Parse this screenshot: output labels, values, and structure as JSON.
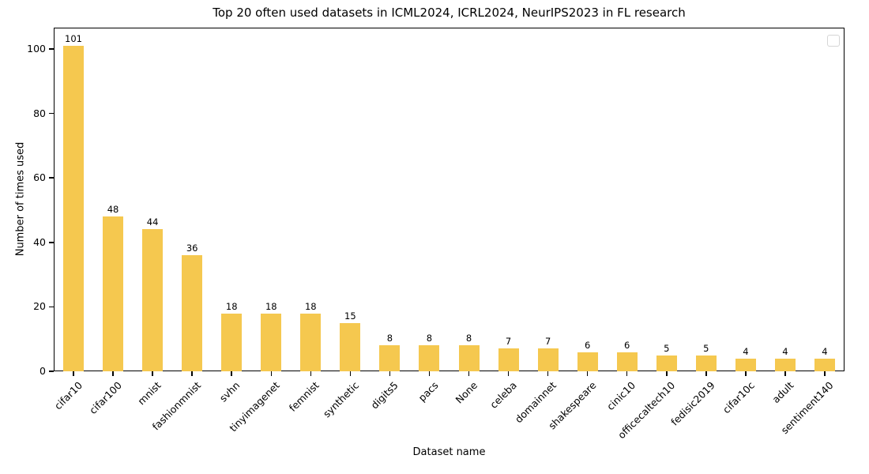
{
  "chart_data": {
    "type": "bar",
    "title": "Top 20 often used datasets in ICML2024, ICRL2024, NeurIPS2023 in FL research",
    "xlabel": "Dataset name",
    "ylabel": "Number of times used",
    "categories": [
      "cifar10",
      "cifar100",
      "mnist",
      "fashionmnist",
      "svhn",
      "tinyimagenet",
      "femnist",
      "synthetic",
      "digits5",
      "pacs",
      "None",
      "celeba",
      "domainnet",
      "shakespeare",
      "cinic10",
      "officecaltech10",
      "fedisic2019",
      "cifar10c",
      "adult",
      "sentiment140"
    ],
    "values": [
      101,
      48,
      44,
      36,
      18,
      18,
      18,
      15,
      8,
      8,
      8,
      7,
      7,
      6,
      6,
      5,
      5,
      4,
      4,
      4
    ],
    "value_labels_shown": true,
    "yticks": [
      0,
      20,
      40,
      60,
      80,
      100
    ],
    "ylim": [
      0,
      106.6
    ],
    "xtick_rotation": 45,
    "grid": false,
    "legend": "empty box, top-right inside axes",
    "bar_color": "#F5C84F",
    "axis_color": "#000000",
    "background_color": "#ffffff"
  }
}
